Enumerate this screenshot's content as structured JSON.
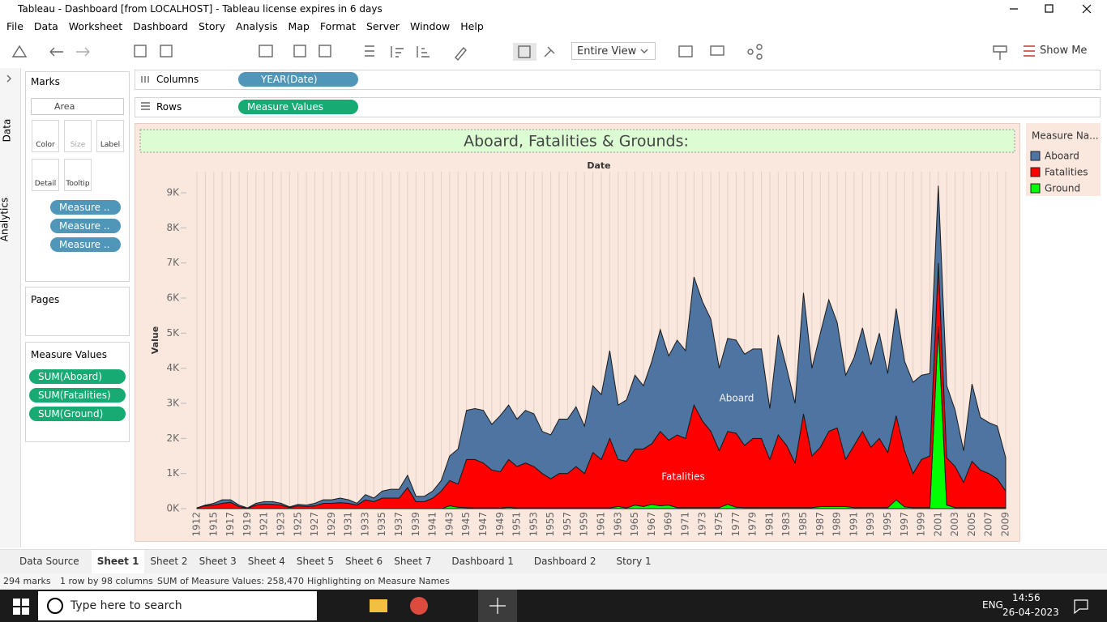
{
  "window_title": "Tableau - Dashboard [from LOCALHOST] - Tableau license expires in 6 days",
  "menu": [
    "File",
    "Data",
    "Worksheet",
    "Dashboard",
    "Story",
    "Analysis",
    "Map",
    "Format",
    "Server",
    "Window",
    "Help"
  ],
  "toolbar": {
    "view": "Entire View",
    "show_me": "Show Me"
  },
  "side_tabs": [
    "Data",
    "Analytics"
  ],
  "marks": {
    "title": "Marks",
    "type": "Area",
    "buttons": [
      "Color",
      "Size",
      "Label",
      "Detail",
      "Tooltip"
    ],
    "pills": [
      "Measure ..",
      "Measure ..",
      "Measure .."
    ]
  },
  "pages": {
    "title": "Pages"
  },
  "measure_values": {
    "title": "Measure Values",
    "pills": [
      "SUM(Aboard)",
      "SUM(Fatalities)",
      "SUM(Ground)"
    ]
  },
  "shelves": {
    "columns": {
      "label": "Columns",
      "pill": "YEAR(Date)"
    },
    "rows": {
      "label": "Rows",
      "pill": "Measure Values"
    }
  },
  "chart_data": {
    "type": "area",
    "stacked": true,
    "title": "Aboard, Fatalities & Grounds:",
    "x_label": "Date",
    "y_label": "Value",
    "legend_title": "Measure Na...",
    "categories": [
      1912,
      null,
      1915,
      null,
      1917,
      null,
      1919,
      null,
      1921,
      null,
      1923,
      null,
      1925,
      null,
      1927,
      null,
      1929,
      null,
      1931,
      null,
      1933,
      null,
      1935,
      null,
      1937,
      null,
      1939,
      null,
      1941,
      null,
      1943,
      null,
      1945,
      null,
      1947,
      null,
      1949,
      null,
      1951,
      null,
      1953,
      null,
      1955,
      null,
      1957,
      null,
      1959,
      null,
      1961,
      null,
      1963,
      null,
      1965,
      null,
      1967,
      null,
      1969,
      null,
      1971,
      null,
      1973,
      null,
      1975,
      null,
      1977,
      null,
      1979,
      null,
      1981,
      null,
      1983,
      null,
      1985,
      null,
      1987,
      null,
      1989,
      null,
      1991,
      null,
      1993,
      null,
      1995,
      null,
      1997,
      null,
      1999,
      null,
      2001,
      null,
      2003,
      null,
      2005,
      null,
      2007,
      null,
      2009
    ],
    "series": [
      {
        "name": "Aboard",
        "color": "#4e74a1",
        "values": [
          0,
          20,
          50,
          100,
          70,
          40,
          10,
          50,
          70,
          80,
          50,
          20,
          40,
          40,
          70,
          100,
          100,
          130,
          100,
          50,
          150,
          100,
          200,
          250,
          250,
          350,
          150,
          150,
          200,
          300,
          700,
          1000,
          1400,
          1450,
          1500,
          1300,
          1600,
          1550,
          1350,
          1500,
          1500,
          1200,
          1250,
          1550,
          1550,
          1700,
          1350,
          1900,
          1850,
          2500,
          1550,
          1750,
          2100,
          1800,
          2350,
          2900,
          2400,
          2700,
          2500,
          3650,
          3400,
          3200,
          2350,
          2650,
          2650,
          2600,
          2550,
          2550,
          1450,
          2850,
          2200,
          1700,
          3450,
          2500,
          3250,
          3750,
          3000,
          2400,
          2500,
          2950,
          2350,
          3000,
          2250,
          3050,
          2550,
          2600,
          2400,
          2350,
          2200,
          2050,
          1600,
          900,
          2200,
          1500,
          1450,
          1500,
          950
        ]
      },
      {
        "name": "Fatalities",
        "color": "#ff0000",
        "values": [
          20,
          80,
          100,
          150,
          180,
          60,
          10,
          100,
          130,
          120,
          100,
          30,
          80,
          60,
          80,
          150,
          150,
          170,
          150,
          100,
          250,
          200,
          300,
          300,
          300,
          600,
          200,
          200,
          300,
          500,
          720,
          660,
          1370,
          1380,
          1280,
          1080,
          1030,
          1360,
          1180,
          1280,
          1180,
          980,
          830,
          980,
          980,
          1180,
          980,
          1580,
          1380,
          1980,
          1340,
          1330,
          1600,
          1640,
          1730,
          2120,
          1850,
          2070,
          1970,
          2920,
          2470,
          2170,
          1620,
          2080,
          2110,
          1770,
          1970,
          1970,
          1370,
          2070,
          1770,
          1270,
          2670,
          1470,
          1690,
          2140,
          2240,
          1340,
          1770,
          2170,
          1720,
          1970,
          1570,
          2400,
          1600,
          970,
          1370,
          1470,
          1800,
          1350,
          1170,
          720,
          1320,
          1070,
          970,
          820,
          470
        ]
      },
      {
        "name": "Ground",
        "color": "#00ff00",
        "values": [
          0,
          0,
          0,
          0,
          0,
          0,
          0,
          0,
          0,
          0,
          0,
          0,
          0,
          0,
          0,
          0,
          0,
          0,
          0,
          0,
          0,
          0,
          0,
          0,
          0,
          0,
          0,
          0,
          0,
          0,
          80,
          40,
          30,
          20,
          20,
          20,
          20,
          40,
          20,
          20,
          20,
          20,
          20,
          20,
          20,
          20,
          20,
          20,
          20,
          20,
          60,
          20,
          100,
          60,
          120,
          80,
          100,
          30,
          30,
          30,
          30,
          30,
          30,
          120,
          40,
          30,
          30,
          30,
          30,
          30,
          30,
          30,
          30,
          30,
          60,
          60,
          60,
          60,
          30,
          30,
          30,
          30,
          30,
          250,
          50,
          30,
          30,
          30,
          5200,
          100,
          30,
          30,
          30,
          30,
          30,
          30,
          30
        ]
      }
    ],
    "ylim": [
      0,
      9600
    ],
    "yticks": [
      {
        "value": 0,
        "label": "0K"
      },
      {
        "value": 1000,
        "label": "1K"
      },
      {
        "value": 2000,
        "label": "2K"
      },
      {
        "value": 3000,
        "label": "3K"
      },
      {
        "value": 4000,
        "label": "4K"
      },
      {
        "value": 5000,
        "label": "5K"
      },
      {
        "value": 6000,
        "label": "6K"
      },
      {
        "value": 7000,
        "label": "7K"
      },
      {
        "value": 8000,
        "label": "8K"
      },
      {
        "value": 9000,
        "label": "9K"
      }
    ],
    "annotations": [
      "Aboard",
      "Fatalities"
    ]
  },
  "tabs": [
    "Data Source",
    "Sheet 1",
    "Sheet 2",
    "Sheet 3",
    "Sheet 4",
    "Sheet 5",
    "Sheet 6",
    "Sheet 7",
    "Dashboard 1",
    "Dashboard 2",
    "Story 1"
  ],
  "status": [
    "294 marks",
    "1 row by 98 columns",
    "SUM of Measure Values: 258,470",
    "Highlighting on Measure Names"
  ],
  "taskbar": {
    "search": "Type here to search",
    "lang": "ENG",
    "time": "14:56",
    "date": "26-04-2023"
  }
}
